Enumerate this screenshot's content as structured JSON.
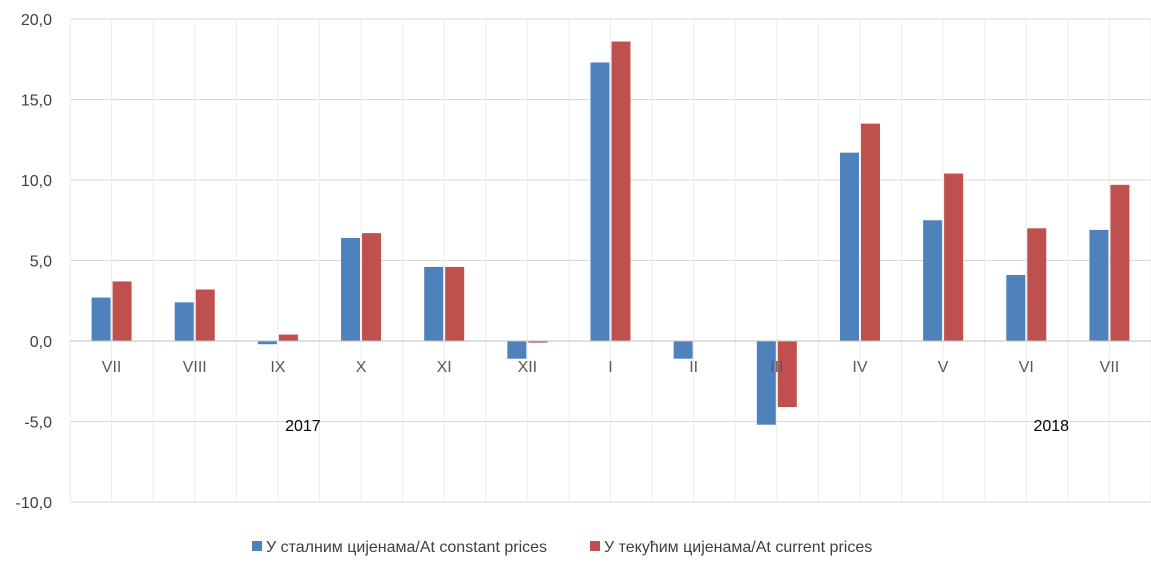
{
  "chart_data": {
    "type": "bar",
    "categories": [
      "VII",
      "VIII",
      "IX",
      "X",
      "XI",
      "XII",
      "I",
      "II",
      "III",
      "IV",
      "V",
      "VI",
      "VII"
    ],
    "series": [
      {
        "name": "У сталним цијенама/At constant prices",
        "color": "#4F81BD",
        "values": [
          2.7,
          2.4,
          -0.2,
          6.4,
          4.6,
          -1.1,
          17.3,
          -1.1,
          -5.2,
          11.7,
          7.5,
          4.1,
          6.9
        ]
      },
      {
        "name": "У текућим цијенама/At current prices",
        "color": "#C0504D",
        "values": [
          3.7,
          3.2,
          0.4,
          6.7,
          4.6,
          -0.1,
          18.6,
          0.0,
          -4.1,
          13.5,
          10.4,
          7.0,
          9.7
        ]
      }
    ],
    "year_labels": [
      {
        "text": "2017",
        "category_index": 2
      },
      {
        "text": "2018",
        "category_index": 11
      }
    ],
    "y_ticks": [
      "20,0",
      "15,0",
      "10,0",
      "5,0",
      "0,0",
      "-5,0",
      "-10,0"
    ],
    "y_tick_values": [
      20,
      15,
      10,
      5,
      0,
      -5,
      -10
    ],
    "ylim": [
      -10,
      20
    ],
    "grid": true,
    "legend_position": "bottom",
    "title": "",
    "xlabel": "",
    "ylabel": ""
  }
}
